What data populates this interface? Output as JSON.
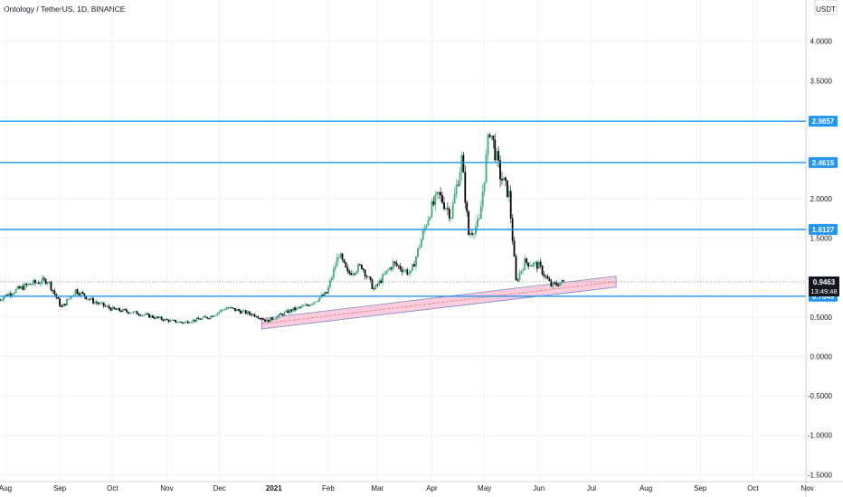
{
  "chart_data": {
    "type": "candlestick",
    "title": "Ontology / TetherUS, 1D, BINANCE",
    "y_axis_unit": "USDT",
    "y_ticks": [
      "4.0000",
      "3.5000",
      "2.0000",
      "1.5000",
      "0.5000",
      "0.0000",
      "-0.5000",
      "-1.0000",
      "-1.5000"
    ],
    "x_ticks": [
      "Aug",
      "Sep",
      "Oct",
      "Nov",
      "Dec",
      "2021",
      "Feb",
      "Mar",
      "Apr",
      "May",
      "Jun",
      "Jul",
      "Aug",
      "Sep",
      "Oct",
      "Nov"
    ],
    "ylim": [
      -1.5,
      4.5
    ],
    "horizontal_levels": [
      {
        "value": 2.9857,
        "label": "2.9857"
      },
      {
        "value": 2.4615,
        "label": "2.4615"
      },
      {
        "value": 1.6127,
        "label": "1.6127"
      },
      {
        "value": 0.7649,
        "label": "0.7649"
      }
    ],
    "last_price": {
      "value": 0.9463,
      "label": "0.9463",
      "countdown": "13:49:48"
    },
    "trend_channel": {
      "start_date": "2020-12-25",
      "end_date": "2021-07-15",
      "lower_start": 0.35,
      "upper_start": 0.48,
      "lower_end": 0.88,
      "upper_end": 1.02
    },
    "colors": {
      "up": "#26a69a",
      "up_fill": "#4caf50",
      "down": "#000000",
      "level": "#2196f3",
      "channel": "#f8bbd0",
      "grid": "#f0f3fa"
    },
    "candle_anchors": [
      [
        "2020-07-28",
        0.72
      ],
      [
        "2020-08-05",
        0.82
      ],
      [
        "2020-08-15",
        0.92
      ],
      [
        "2020-08-25",
        0.97
      ],
      [
        "2020-09-02",
        0.62
      ],
      [
        "2020-09-10",
        0.84
      ],
      [
        "2020-09-20",
        0.7
      ],
      [
        "2020-10-01",
        0.6
      ],
      [
        "2020-10-15",
        0.55
      ],
      [
        "2020-11-01",
        0.46
      ],
      [
        "2020-11-10",
        0.43
      ],
      [
        "2020-11-25",
        0.5
      ],
      [
        "2020-12-05",
        0.62
      ],
      [
        "2020-12-12",
        0.58
      ],
      [
        "2020-12-22",
        0.52
      ],
      [
        "2020-12-28",
        0.45
      ],
      [
        "2021-01-10",
        0.58
      ],
      [
        "2021-01-20",
        0.65
      ],
      [
        "2021-01-31",
        0.8
      ],
      [
        "2021-02-07",
        1.3
      ],
      [
        "2021-02-12",
        1.05
      ],
      [
        "2021-02-20",
        1.15
      ],
      [
        "2021-02-27",
        0.85
      ],
      [
        "2021-03-10",
        1.18
      ],
      [
        "2021-03-20",
        1.05
      ],
      [
        "2021-03-31",
        1.85
      ],
      [
        "2021-04-05",
        2.05
      ],
      [
        "2021-04-12",
        1.8
      ],
      [
        "2021-04-18",
        2.5
      ],
      [
        "2021-04-22",
        1.55
      ],
      [
        "2021-04-28",
        1.7
      ],
      [
        "2021-05-04",
        2.9
      ],
      [
        "2021-05-10",
        2.3
      ],
      [
        "2021-05-15",
        2.05
      ],
      [
        "2021-05-19",
        0.95
      ],
      [
        "2021-05-24",
        1.2
      ],
      [
        "2021-06-01",
        1.15
      ],
      [
        "2021-06-08",
        0.9
      ],
      [
        "2021-06-15",
        0.9463
      ]
    ]
  }
}
